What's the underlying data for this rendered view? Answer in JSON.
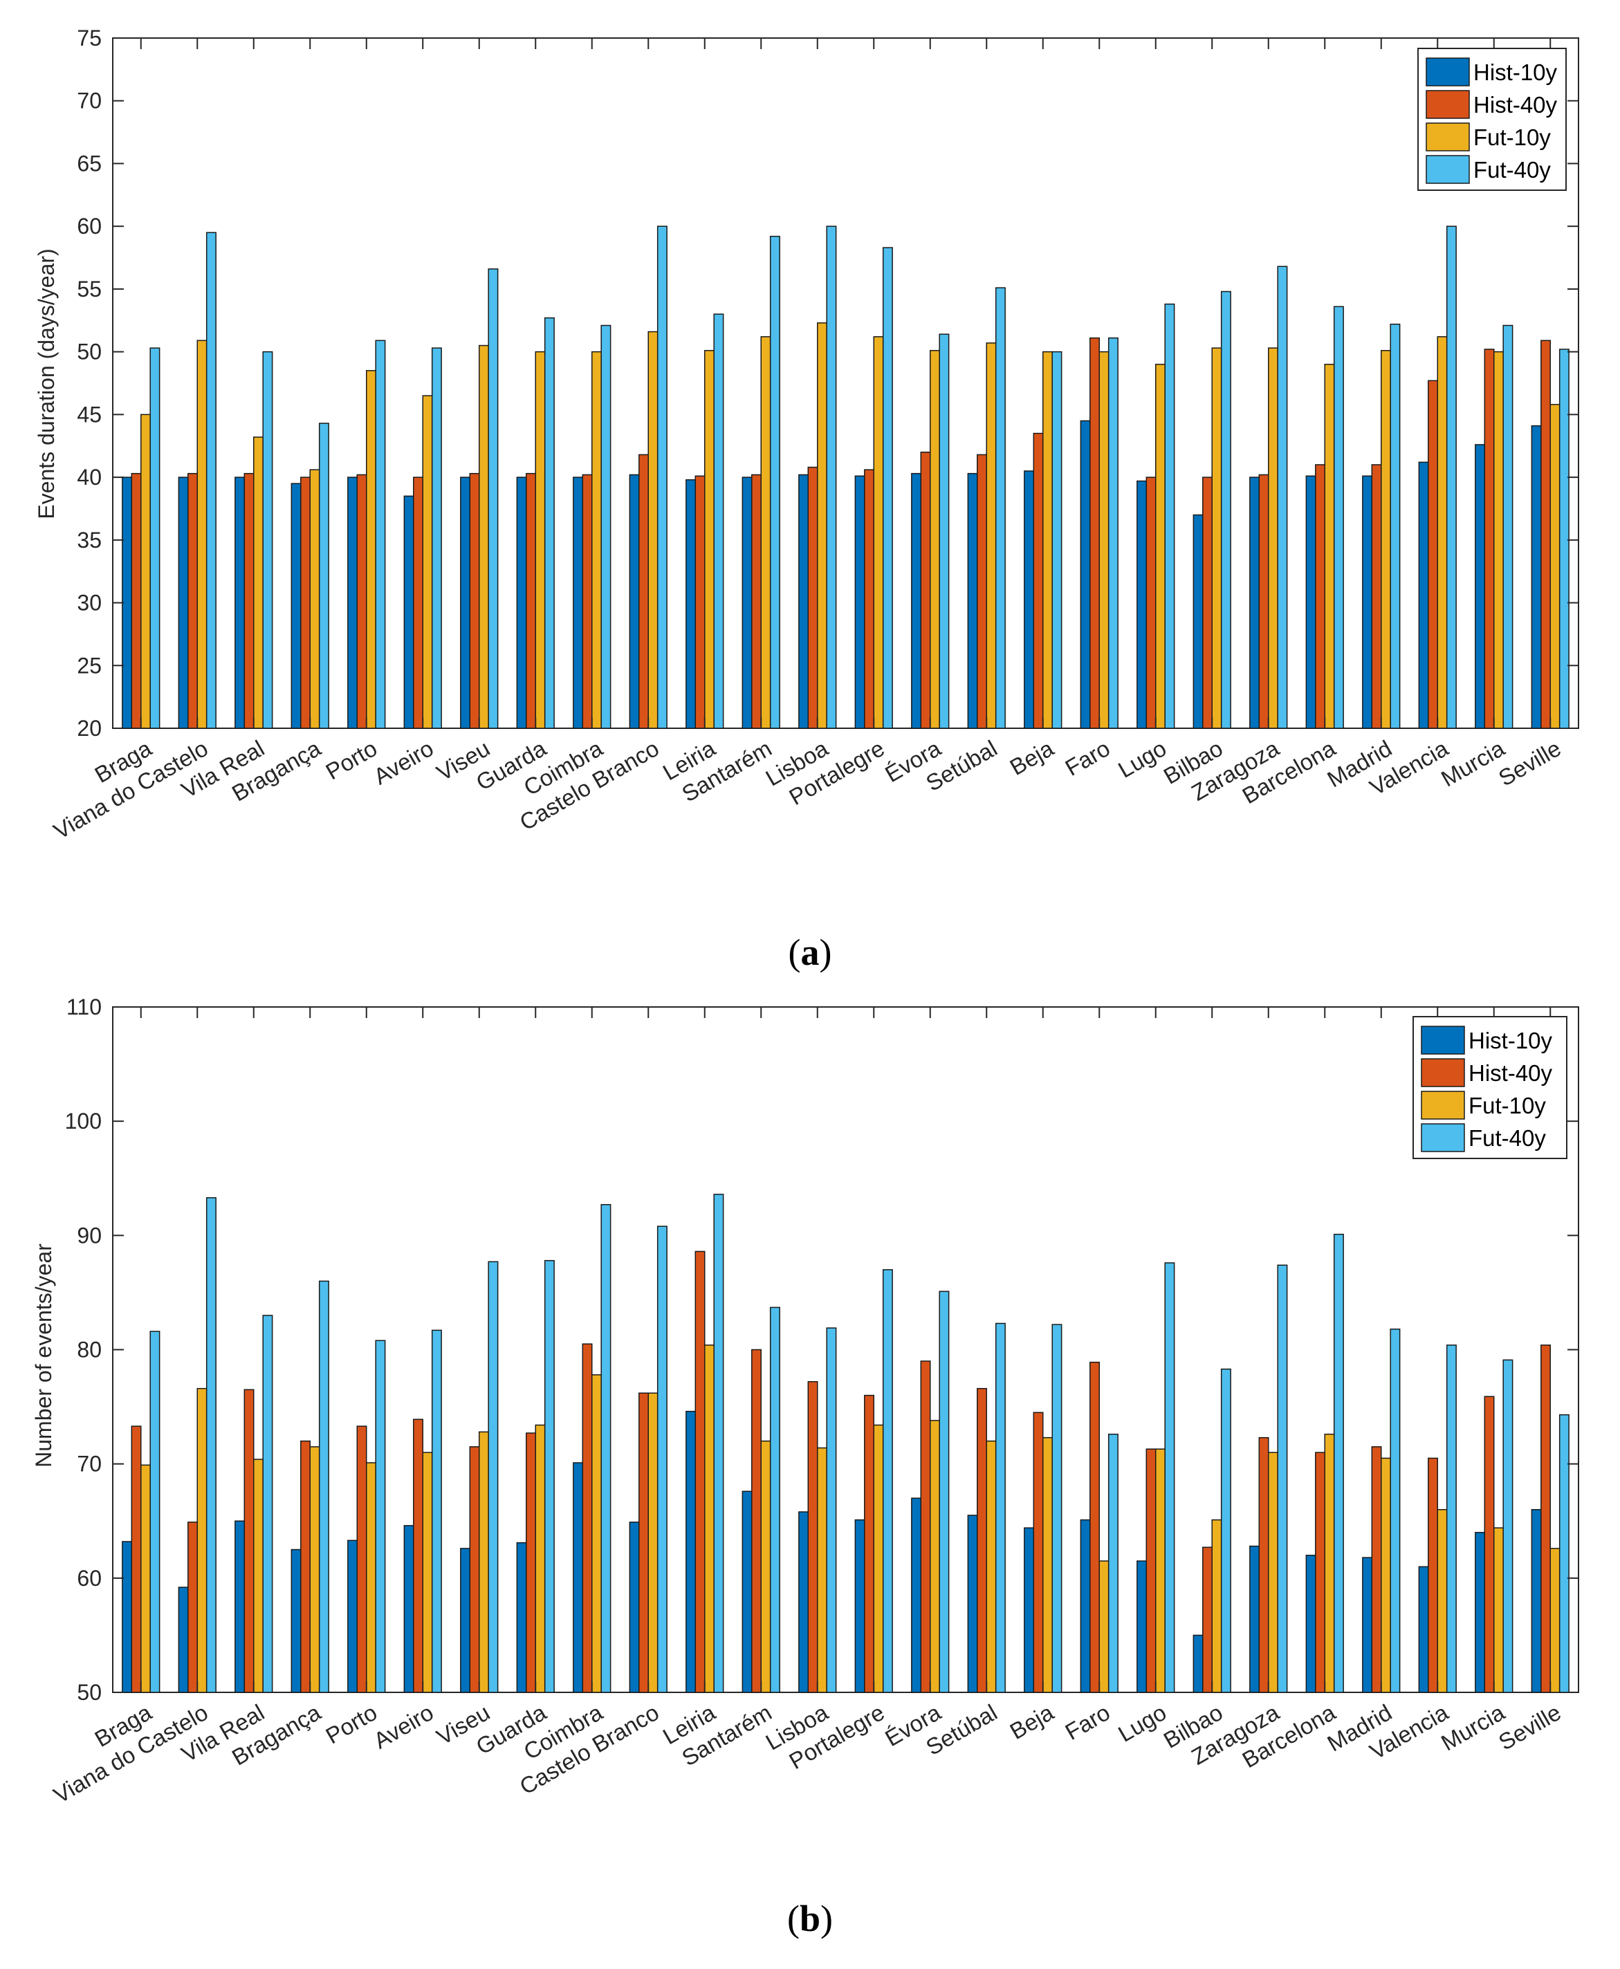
{
  "colors": {
    "Hist-10y": "#0072BD",
    "Hist-40y": "#D95319",
    "Fut-10y": "#EDB120",
    "Fut-40y": "#4DBEEE"
  },
  "chart_data": [
    {
      "type": "bar",
      "panel_label": "a",
      "title": "",
      "xlabel": "",
      "ylabel": "Events duration (days/year)",
      "ylim": [
        20,
        75
      ],
      "yticks": [
        20,
        25,
        30,
        35,
        40,
        45,
        50,
        55,
        60,
        65,
        70,
        75
      ],
      "grid": false,
      "legend_position": "top-right",
      "categories": [
        "Braga",
        "Viana do Castelo",
        "Vila Real",
        "Bragança",
        "Porto",
        "Aveiro",
        "Viseu",
        "Guarda",
        "Coimbra",
        "Castelo Branco",
        "Leiria",
        "Santarém",
        "Lisboa",
        "Portalegre",
        "Évora",
        "Setúbal",
        "Beja",
        "Faro",
        "Lugo",
        "Bilbao",
        "Zaragoza",
        "Barcelona",
        "Madrid",
        "Valencia",
        "Murcia",
        "Seville"
      ],
      "series": [
        {
          "name": "Hist-10y",
          "values": [
            40.0,
            40.0,
            40.0,
            39.5,
            40.0,
            38.5,
            40.0,
            40.0,
            40.0,
            40.2,
            39.8,
            40.0,
            40.2,
            40.1,
            40.3,
            40.3,
            40.5,
            44.5,
            39.7,
            37.0,
            40.0,
            40.1,
            40.1,
            41.2,
            42.6,
            44.1
          ]
        },
        {
          "name": "Hist-40y",
          "values": [
            40.3,
            40.3,
            40.3,
            40.0,
            40.2,
            40.0,
            40.3,
            40.3,
            40.2,
            41.8,
            40.1,
            40.2,
            40.8,
            40.6,
            42.0,
            41.8,
            43.5,
            51.1,
            40.0,
            40.0,
            40.2,
            41.0,
            41.0,
            47.7,
            50.2,
            50.9
          ]
        },
        {
          "name": "Fut-10y",
          "values": [
            45.0,
            50.9,
            43.2,
            40.6,
            48.5,
            46.5,
            50.5,
            50.0,
            50.0,
            51.6,
            50.1,
            51.2,
            52.3,
            51.2,
            50.1,
            50.7,
            50.0,
            50.0,
            49.0,
            50.3,
            50.3,
            49.0,
            50.1,
            51.2,
            50.0,
            45.8
          ]
        },
        {
          "name": "Fut-40y",
          "values": [
            50.3,
            59.5,
            50.0,
            44.3,
            50.9,
            50.3,
            56.6,
            52.7,
            52.1,
            60.0,
            53.0,
            59.2,
            60.0,
            58.3,
            51.4,
            55.1,
            50.0,
            51.1,
            53.8,
            54.8,
            56.8,
            53.6,
            52.2,
            60.0,
            52.1,
            50.2
          ]
        }
      ]
    },
    {
      "type": "bar",
      "panel_label": "b",
      "title": "",
      "xlabel": "",
      "ylabel": "Number of events/year",
      "ylim": [
        50,
        110
      ],
      "yticks": [
        50,
        60,
        70,
        80,
        90,
        100,
        110
      ],
      "grid": false,
      "legend_position": "top-right",
      "categories": [
        "Braga",
        "Viana do Castelo",
        "Vila Real",
        "Bragança",
        "Porto",
        "Aveiro",
        "Viseu",
        "Guarda",
        "Coimbra",
        "Castelo Branco",
        "Leiria",
        "Santarém",
        "Lisboa",
        "Portalegre",
        "Évora",
        "Setúbal",
        "Beja",
        "Faro",
        "Lugo",
        "Bilbao",
        "Zaragoza",
        "Barcelona",
        "Madrid",
        "Valencia",
        "Murcia",
        "Seville"
      ],
      "series": [
        {
          "name": "Hist-10y",
          "values": [
            63.2,
            59.2,
            65.0,
            62.5,
            63.3,
            64.6,
            62.6,
            63.1,
            70.1,
            64.9,
            74.6,
            67.6,
            65.8,
            65.1,
            67.0,
            65.5,
            64.4,
            65.1,
            61.5,
            55.0,
            62.8,
            62.0,
            61.8,
            61.0,
            64.0,
            66.0
          ]
        },
        {
          "name": "Hist-40y",
          "values": [
            73.3,
            64.9,
            76.5,
            72.0,
            73.3,
            73.9,
            71.5,
            72.7,
            80.5,
            76.2,
            88.6,
            80.0,
            77.2,
            76.0,
            79.0,
            76.6,
            74.5,
            78.9,
            71.3,
            62.7,
            72.3,
            71.0,
            71.5,
            70.5,
            75.9,
            80.4
          ]
        },
        {
          "name": "Fut-10y",
          "values": [
            69.9,
            76.6,
            70.4,
            71.5,
            70.1,
            71.0,
            72.8,
            73.4,
            77.8,
            76.2,
            80.4,
            72.0,
            71.4,
            73.4,
            73.8,
            72.0,
            72.3,
            61.5,
            71.3,
            65.1,
            71.0,
            72.6,
            70.5,
            66.0,
            64.4,
            62.6
          ]
        },
        {
          "name": "Fut-40y",
          "values": [
            81.6,
            93.3,
            83.0,
            86.0,
            80.8,
            81.7,
            87.7,
            87.8,
            92.7,
            90.8,
            93.6,
            83.7,
            81.9,
            87.0,
            85.1,
            82.3,
            82.2,
            72.6,
            87.6,
            78.3,
            87.4,
            90.1,
            81.8,
            80.4,
            79.1,
            74.3
          ]
        }
      ]
    }
  ]
}
